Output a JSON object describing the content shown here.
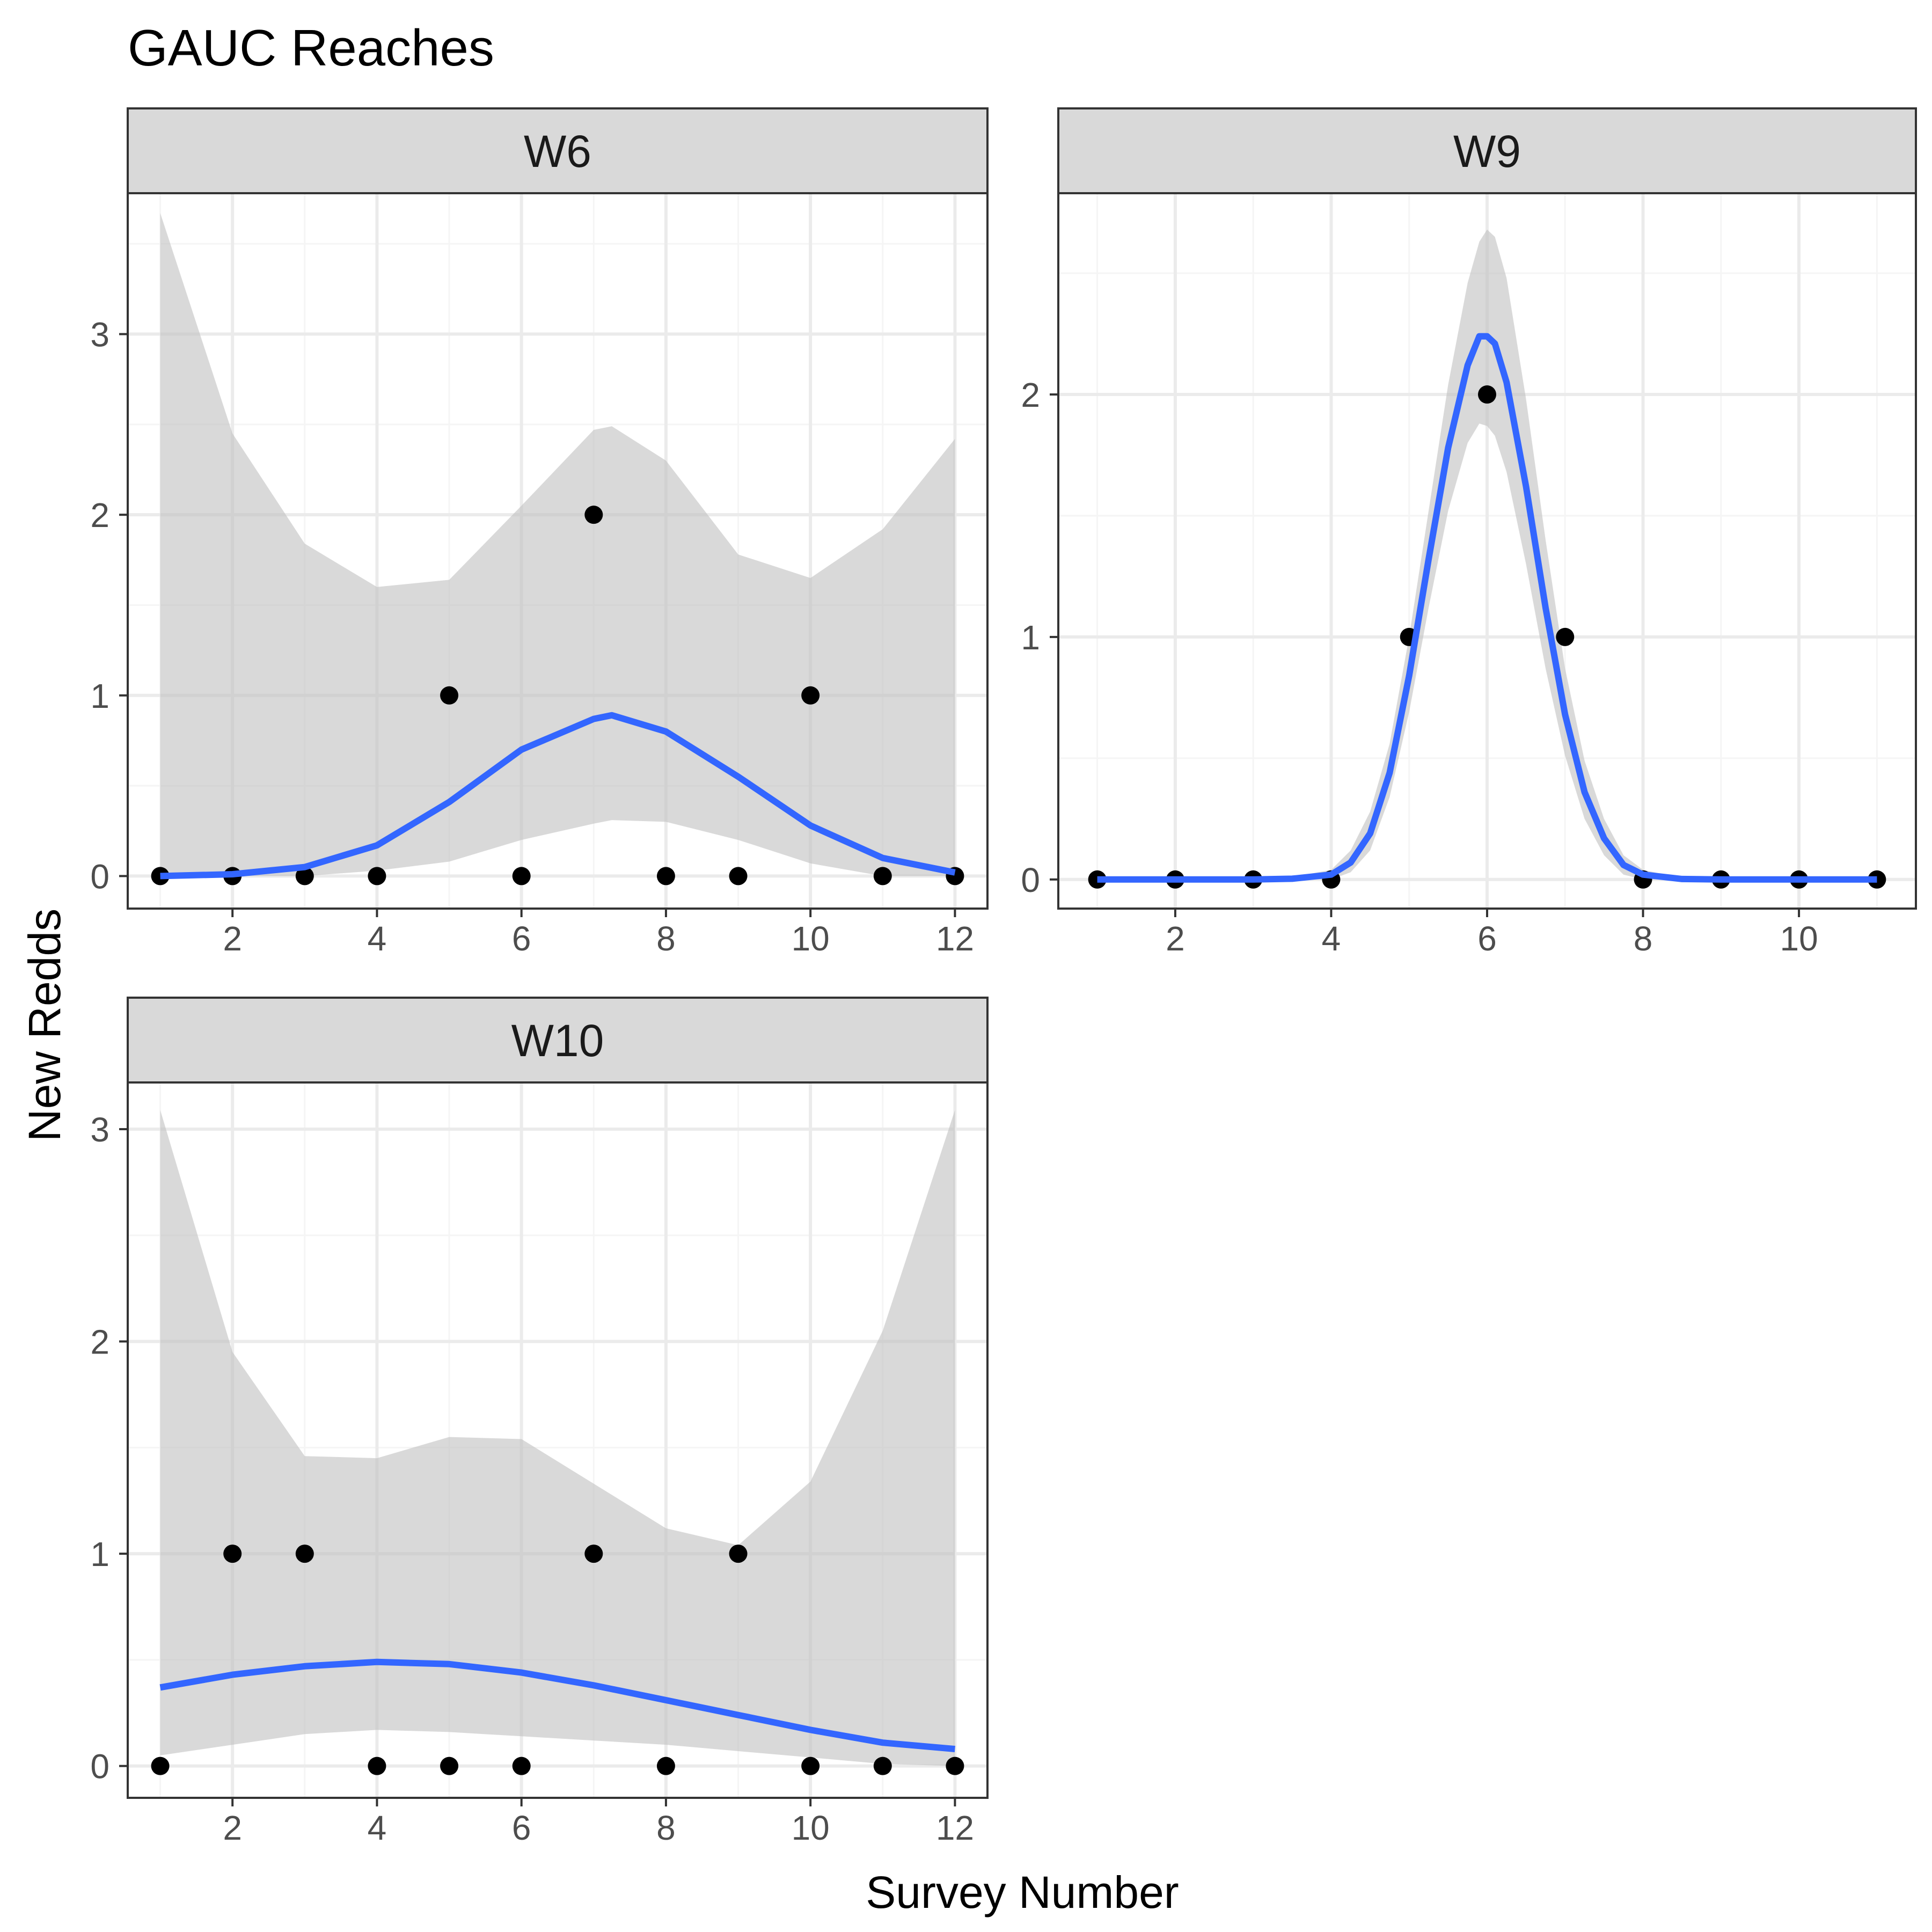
{
  "chart_data": {
    "type": "scatter",
    "title": "GAUC Reaches",
    "xlabel": "Survey Number",
    "ylabel": "New Redds",
    "overlay": "loess smooth with confidence band",
    "colors": {
      "points": "#000000",
      "smooth_line": "#3366ff",
      "ribbon": "#bfbfbf",
      "strip_background": "#d9d9d9",
      "grid_major": "#ebebeb",
      "grid_minor": "#f5f5f5",
      "border": "#333333"
    },
    "facets": [
      {
        "name": "W6",
        "xlim": [
          0.55,
          12.45
        ],
        "ylim": [
          -0.18,
          3.78
        ],
        "x_ticks": [
          2,
          4,
          6,
          8,
          10,
          12
        ],
        "y_ticks": [
          0,
          1,
          2,
          3
        ],
        "points": {
          "x": [
            1,
            2,
            3,
            4,
            5,
            6,
            7,
            8,
            9,
            10,
            11,
            12
          ],
          "y": [
            0,
            0,
            0,
            0,
            1,
            0,
            2,
            0,
            0,
            1,
            0,
            0
          ]
        },
        "smooth": {
          "x": [
            1,
            2,
            3,
            4,
            5,
            6,
            7,
            7.25,
            8,
            9,
            10,
            11,
            12
          ],
          "y": [
            0.0,
            0.01,
            0.05,
            0.17,
            0.41,
            0.7,
            0.87,
            0.89,
            0.8,
            0.55,
            0.28,
            0.1,
            0.02
          ],
          "ymin": [
            0.0,
            0.0,
            0.0,
            0.03,
            0.08,
            0.2,
            0.29,
            0.31,
            0.3,
            0.2,
            0.07,
            0.0,
            0.0
          ],
          "ymax": [
            3.67,
            2.45,
            1.84,
            1.6,
            1.64,
            2.05,
            2.47,
            2.49,
            2.3,
            1.78,
            1.65,
            1.92,
            2.42
          ]
        }
      },
      {
        "name": "W9",
        "xlim": [
          0.5,
          11.5
        ],
        "ylim": [
          -0.12,
          2.83
        ],
        "x_ticks": [
          2,
          4,
          6,
          8,
          10
        ],
        "y_ticks": [
          0,
          1,
          2
        ],
        "points": {
          "x": [
            1,
            2,
            3,
            4,
            5,
            6,
            7,
            8,
            9,
            10,
            11
          ],
          "y": [
            0,
            0,
            0,
            0,
            1,
            2,
            1,
            0,
            0,
            0,
            0
          ]
        },
        "smooth": {
          "x": [
            1,
            2,
            3,
            3.5,
            4,
            4.25,
            4.5,
            4.75,
            5,
            5.25,
            5.5,
            5.75,
            5.9,
            6,
            6.1,
            6.25,
            6.5,
            6.75,
            7,
            7.25,
            7.5,
            7.75,
            8,
            8.5,
            9,
            10,
            11
          ],
          "y": [
            0,
            0,
            0,
            0.003,
            0.02,
            0.07,
            0.19,
            0.44,
            0.84,
            1.32,
            1.78,
            2.12,
            2.24,
            2.24,
            2.21,
            2.05,
            1.62,
            1.12,
            0.68,
            0.36,
            0.17,
            0.06,
            0.02,
            0.002,
            0,
            0,
            0
          ],
          "ymin": [
            0,
            0,
            0,
            0,
            0.0,
            0.03,
            0.12,
            0.34,
            0.69,
            1.12,
            1.52,
            1.8,
            1.88,
            1.87,
            1.83,
            1.68,
            1.3,
            0.87,
            0.51,
            0.25,
            0.1,
            0.02,
            0.0,
            0,
            0,
            0,
            0
          ],
          "ymax": [
            0,
            0,
            0,
            0.01,
            0.04,
            0.12,
            0.28,
            0.56,
            1.0,
            1.52,
            2.04,
            2.46,
            2.63,
            2.68,
            2.65,
            2.48,
            1.98,
            1.4,
            0.87,
            0.49,
            0.25,
            0.1,
            0.04,
            0.005,
            0,
            0,
            0
          ]
        }
      },
      {
        "name": "W10",
        "xlim": [
          0.55,
          12.45
        ],
        "ylim": [
          -0.15,
          3.22
        ],
        "x_ticks": [
          2,
          4,
          6,
          8,
          10,
          12
        ],
        "y_ticks": [
          0,
          1,
          2,
          3
        ],
        "points": {
          "x": [
            1,
            2,
            3,
            4,
            5,
            6,
            7,
            8,
            9,
            10,
            11,
            12
          ],
          "y": [
            0,
            1,
            1,
            0,
            0,
            0,
            1,
            0,
            1,
            0,
            0,
            0
          ]
        },
        "smooth": {
          "x": [
            1,
            2,
            3,
            4,
            5,
            6,
            7,
            8,
            9,
            10,
            11,
            12
          ],
          "y": [
            0.37,
            0.43,
            0.47,
            0.49,
            0.48,
            0.44,
            0.38,
            0.31,
            0.24,
            0.17,
            0.11,
            0.08
          ],
          "ymin": [
            0.05,
            0.1,
            0.15,
            0.17,
            0.16,
            0.14,
            0.12,
            0.1,
            0.07,
            0.04,
            0.01,
            0.0
          ],
          "ymax": [
            3.09,
            1.95,
            1.46,
            1.45,
            1.55,
            1.54,
            1.33,
            1.12,
            1.04,
            1.34,
            2.05,
            3.09
          ]
        }
      }
    ]
  }
}
